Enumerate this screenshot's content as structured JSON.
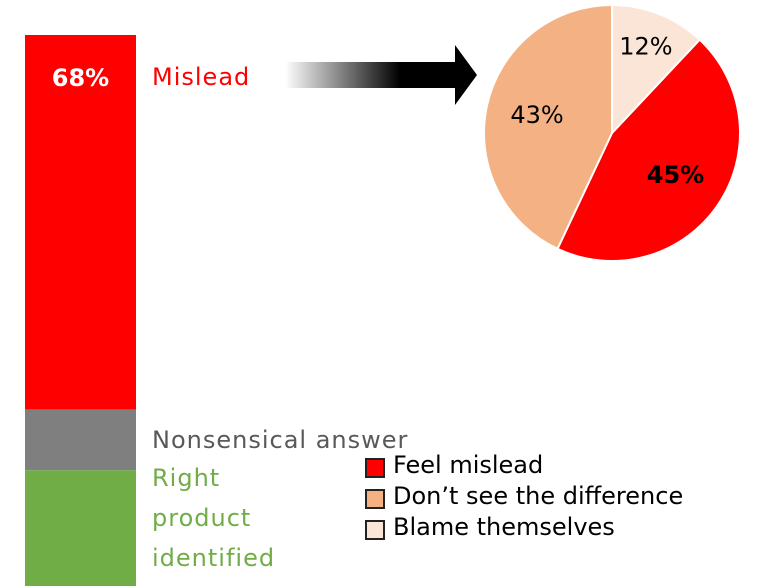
{
  "chart_data": [
    {
      "type": "stacked-bar",
      "categories": [
        null
      ],
      "ylim": [
        0,
        100
      ],
      "series": [
        {
          "name": "Mislead",
          "color": "#ff0000",
          "label_color": "#ff0000",
          "values": [
            68
          ],
          "value_labels": [
            "68%"
          ]
        },
        {
          "name": "Nonsensical answer",
          "color": "#7f7f7f",
          "label_color": "#595959",
          "values": [
            11
          ]
        },
        {
          "name": "Right product identified",
          "color": "#70ad47",
          "label_color": "#70ad47",
          "values": [
            21
          ]
        }
      ]
    },
    {
      "type": "pie",
      "categories": [
        "Feel mislead",
        "Don’t see the difference",
        "Blame themselves"
      ],
      "values": [
        45,
        43,
        12
      ],
      "value_labels": [
        "45%",
        "43%",
        "12%"
      ],
      "colors": [
        "#ff0000",
        "#f4b183",
        "#fbe5d6"
      ],
      "legend": true
    }
  ]
}
